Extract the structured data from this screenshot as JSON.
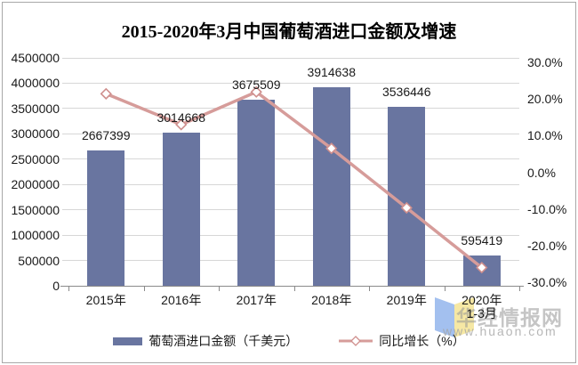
{
  "title": "2015-2020年3月中国葡萄酒进口金额及增速",
  "chart_data": {
    "type": "combo-bar-line",
    "categories": [
      "2015年",
      "2016年",
      "2017年",
      "2018年",
      "2019年",
      "2020年"
    ],
    "category_sublabels": [
      "",
      "",
      "",
      "",
      "",
      "1-3月"
    ],
    "series": [
      {
        "name": "葡萄酒进口金额（千美元）",
        "type": "bar",
        "axis": "left",
        "color": "#6975a0",
        "values": [
          2667399,
          3014668,
          3675509,
          3914638,
          3536446,
          595419
        ]
      },
      {
        "name": "同比增长（%）",
        "type": "line",
        "axis": "right",
        "color": "#d69c9a",
        "marker": "diamond",
        "values": [
          21.4,
          13.0,
          21.9,
          6.5,
          -9.7,
          -26.0
        ]
      }
    ],
    "left_axis": {
      "min": 0,
      "max": 4500000,
      "step": 500000,
      "tick_labels": [
        "4500000",
        "4000000",
        "3500000",
        "3000000",
        "2500000",
        "2000000",
        "1500000",
        "1000000",
        "500000",
        "0"
      ]
    },
    "right_axis": {
      "min": -30,
      "max": 30,
      "step": 10,
      "tick_labels": [
        "30.0%",
        "20.0%",
        "10.0%",
        "0.0%",
        "-10.0%",
        "-20.0%",
        "-30.0%"
      ]
    },
    "grid": true,
    "legend_position": "bottom"
  },
  "watermark": {
    "site_name": "华经情报网",
    "site_url": "www.huaon.com"
  }
}
